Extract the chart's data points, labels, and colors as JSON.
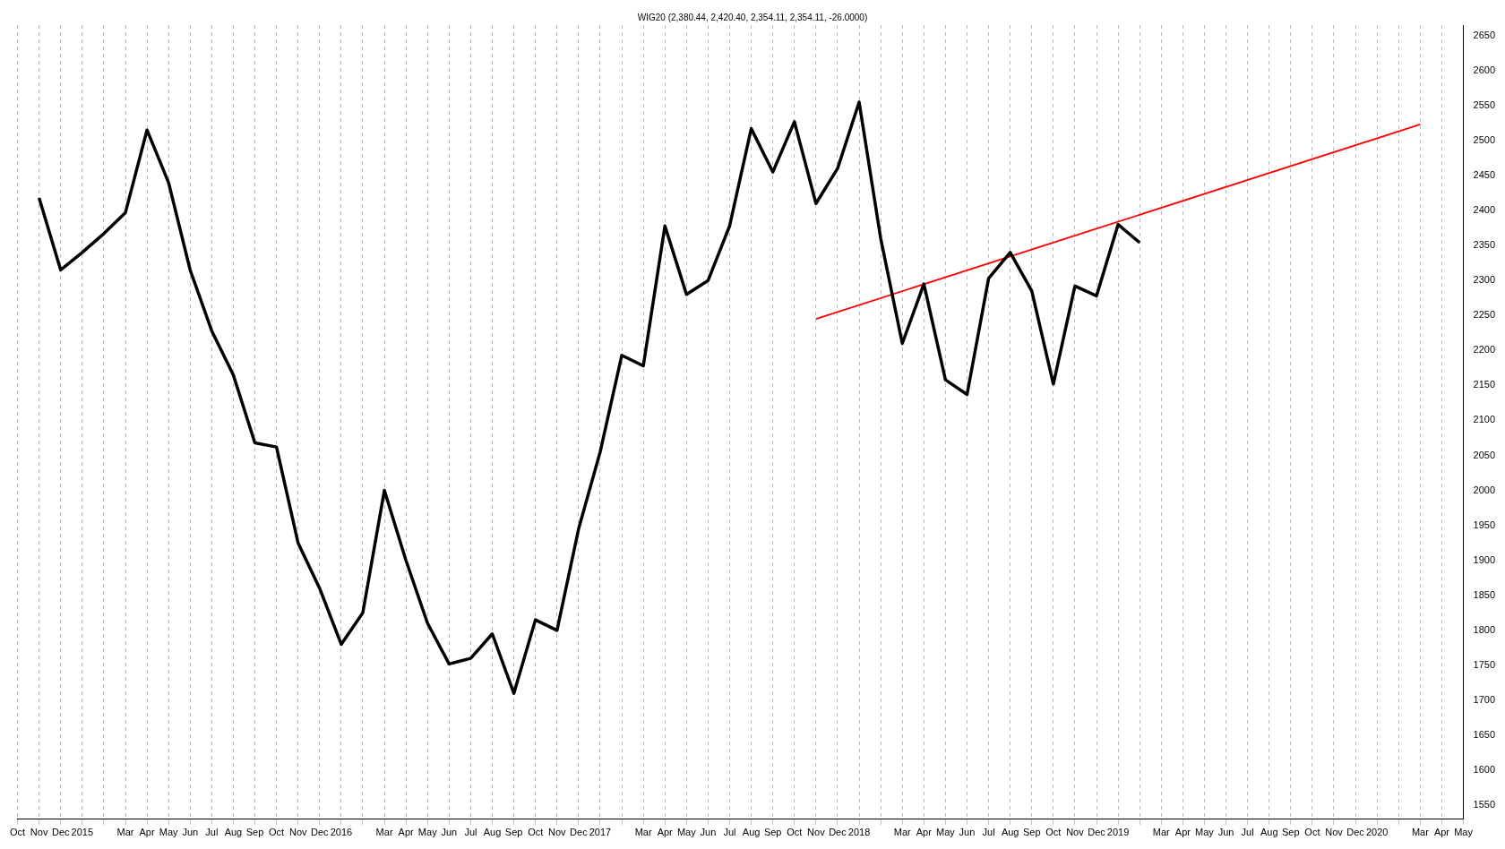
{
  "chart_data": {
    "type": "line",
    "title": "WIG20 (2,380.44, 2,420.40, 2,354.11, 2,354.11, -26.0000)",
    "categories": [
      "Oct",
      "Nov",
      "Dec",
      "2015",
      null,
      "Mar",
      "Apr",
      "May",
      "Jun",
      "Jul",
      "Aug",
      "Sep",
      "Oct",
      "Nov",
      "Dec",
      "2016",
      null,
      "Mar",
      "Apr",
      "May",
      "Jun",
      "Jul",
      "Aug",
      "Sep",
      "Oct",
      "Nov",
      "Dec",
      "2017",
      null,
      "Mar",
      "Apr",
      "May",
      "Jun",
      "Jul",
      "Aug",
      "Sep",
      "Oct",
      "Nov",
      "Dec",
      "2018",
      null,
      "Mar",
      "Apr",
      "May",
      "Jun",
      "Jul",
      "Aug",
      "Sep",
      "Oct",
      "Nov",
      "Dec",
      "2019",
      null,
      "Mar",
      "Apr",
      "May",
      "Jun",
      "Jul",
      "Aug",
      "Sep",
      "Oct",
      "Nov",
      "Dec",
      "2020",
      null,
      "Mar",
      "Apr",
      "May"
    ],
    "series": [
      {
        "color": "#000000",
        "values": [
          null,
          2418,
          2315,
          2340,
          2367,
          2397,
          2515,
          2440,
          2315,
          2228,
          2165,
          2068,
          2062,
          1925,
          1860,
          1780,
          1825,
          2000,
          1900,
          1810,
          1752,
          1760,
          1795,
          1710,
          1815,
          1800,
          1945,
          2055,
          2193,
          2178,
          2378,
          2280,
          2300,
          2378,
          2517,
          2455,
          2527,
          2410,
          2460,
          2555,
          2360,
          2210,
          2295,
          2158,
          2137,
          2303,
          2340,
          2285,
          2152,
          2292,
          2278,
          2380,
          2354,
          null,
          null,
          null,
          null,
          null,
          null,
          null,
          null,
          null,
          null,
          null,
          null,
          null,
          null,
          null
        ]
      },
      {
        "color": "#ff0000",
        "values": [
          null,
          null,
          null,
          null,
          null,
          null,
          null,
          null,
          null,
          null,
          null,
          null,
          null,
          null,
          null,
          null,
          null,
          null,
          null,
          null,
          null,
          null,
          null,
          null,
          null,
          null,
          null,
          null,
          null,
          null,
          null,
          null,
          null,
          null,
          null,
          null,
          null,
          2245,
          null,
          null,
          null,
          null,
          null,
          null,
          null,
          null,
          null,
          null,
          null,
          null,
          null,
          null,
          null,
          null,
          null,
          null,
          null,
          null,
          null,
          null,
          null,
          null,
          null,
          null,
          null,
          2523,
          null,
          null
        ]
      }
    ],
    "ylim": [
      1530,
      2665
    ],
    "yticks": [
      1550,
      1600,
      1650,
      1700,
      1750,
      1800,
      1850,
      1900,
      1950,
      2000,
      2050,
      2100,
      2150,
      2200,
      2250,
      2300,
      2350,
      2400,
      2450,
      2500,
      2550,
      2600,
      2650
    ],
    "grid": "x",
    "legend": false,
    "marker": "none"
  }
}
